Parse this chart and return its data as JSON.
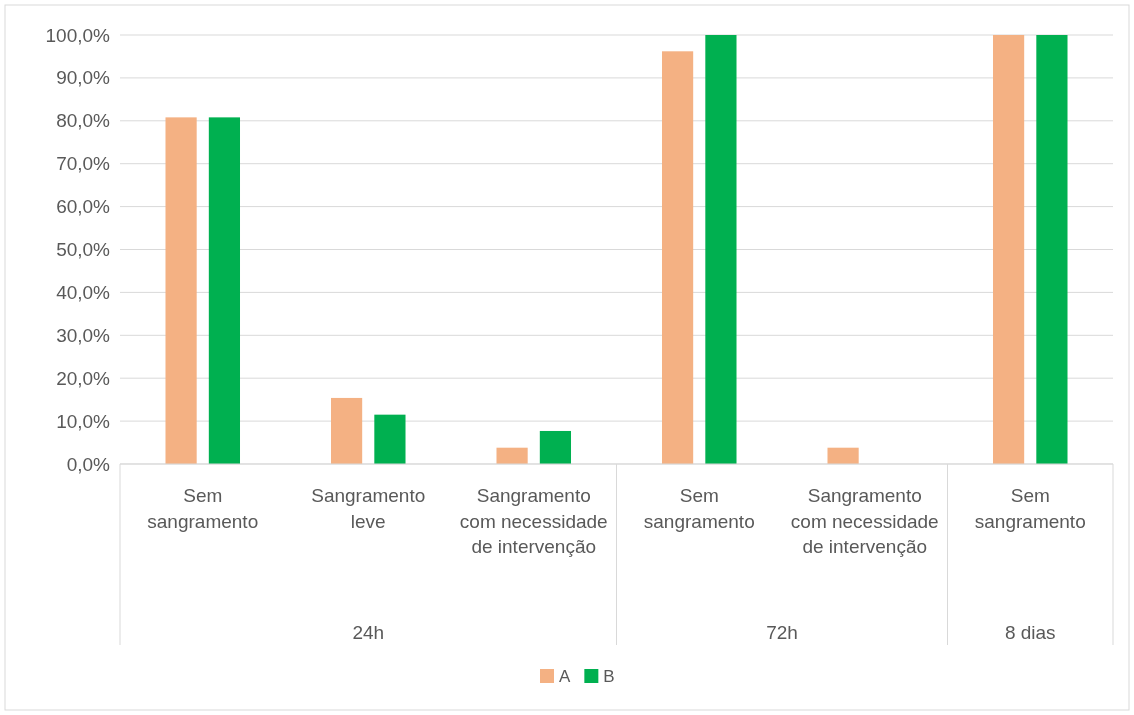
{
  "chart_data": {
    "type": "bar",
    "categories": [
      "Sem sangramento",
      "Sangramento leve",
      "Sangramento com necessidade de intervenção",
      "Sem sangramento",
      "Sangramento com necessidade de intervenção",
      "Sem sangramento"
    ],
    "series": [
      {
        "name": "A",
        "color": "#f4b183",
        "values": [
          80.8,
          15.4,
          3.8,
          96.2,
          3.8,
          100
        ]
      },
      {
        "name": "B",
        "color": "#00b050",
        "values": [
          80.8,
          11.5,
          7.7,
          100,
          0,
          100
        ]
      }
    ],
    "ylim": [
      0,
      100
    ],
    "yticks": [
      {
        "value": 0,
        "label": "0,0%"
      },
      {
        "value": 10,
        "label": "10,0%"
      },
      {
        "value": 20,
        "label": "20,0%"
      },
      {
        "value": 30,
        "label": "30,0%"
      },
      {
        "value": 40,
        "label": "40,0%"
      },
      {
        "value": 50,
        "label": "50,0%"
      },
      {
        "value": 60,
        "label": "60,0%"
      },
      {
        "value": 70,
        "label": "70,0%"
      },
      {
        "value": 80,
        "label": "80,0%"
      },
      {
        "value": 90,
        "label": "90,0%"
      },
      {
        "value": 100,
        "label": "100,0%"
      }
    ],
    "annotations": [
      "24h",
      "72h",
      "8 dias"
    ],
    "grid": "y",
    "legend": "bottom"
  }
}
